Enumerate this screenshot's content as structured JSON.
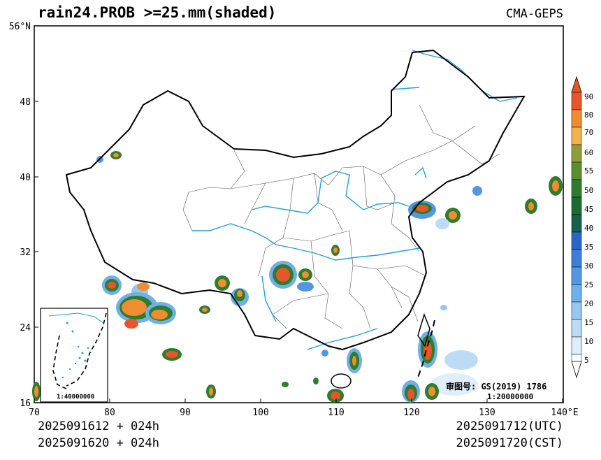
{
  "title": "rain24.PROB >=25.mm(shaded)",
  "source": "CMA-GEPS",
  "axes": {
    "x_ticks": [
      "70",
      "80",
      "90",
      "100",
      "110",
      "120",
      "130",
      "140°E"
    ],
    "y_ticks": [
      "56°N",
      "48",
      "40",
      "32",
      "24",
      "16"
    ]
  },
  "colorbar": {
    "levels": [
      "90",
      "80",
      "70",
      "60",
      "55",
      "50",
      "45",
      "40",
      "35",
      "30",
      "25",
      "20",
      "15",
      "10",
      "5"
    ],
    "colors": [
      "#e8552a",
      "#f08c32",
      "#f4b24c",
      "#8f9d3c",
      "#5a8f2e",
      "#2f7d2c",
      "#1d6a32",
      "#17604a",
      "#2a64c8",
      "#3f7ed8",
      "#5596e2",
      "#6fb0ea",
      "#94c8f0",
      "#bcdcf5",
      "#dfeefa",
      "#ffffff"
    ]
  },
  "footer": {
    "init_utc": "2025091612 + 024h",
    "init_cst": "2025091620 + 024h",
    "valid_utc": "2025091712(UTC)",
    "valid_cst": "2025091720(CST)"
  },
  "approval": {
    "label": "审图号: GS(2019) 1786",
    "scale": "1:20000000"
  },
  "inset": {
    "scale": "1:40000000"
  }
}
